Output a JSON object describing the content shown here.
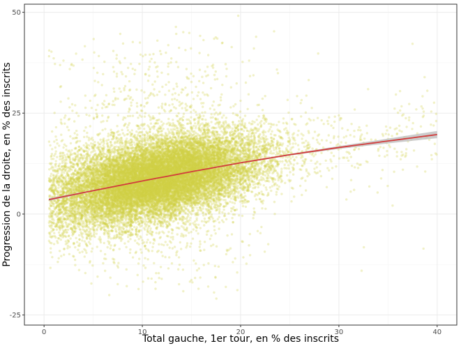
{
  "chart_data": {
    "type": "scatter",
    "title": "",
    "xlabel": "Total gauche, 1er tour, en % des inscrits",
    "ylabel": "Progression de la droite, en % des inscrits",
    "xlim": [
      -2,
      42
    ],
    "ylim": [
      -27.5,
      52
    ],
    "x_ticks": [
      0,
      10,
      20,
      30,
      40
    ],
    "y_ticks": [
      -25,
      0,
      25,
      50
    ],
    "x_tick_labels": [
      "0",
      "10",
      "20",
      "30",
      "40"
    ],
    "y_tick_labels": [
      "-25",
      "0",
      "25",
      "50"
    ],
    "grid": true,
    "legend": "none",
    "point_color": "#cfd146",
    "point_opacity": 0.3,
    "point_count_approx": 20000,
    "point_cloud": {
      "x_mean": 11.5,
      "x_sd": 5.2,
      "x_min": 0.5,
      "x_max": 40,
      "y_noise_sd": 4.8,
      "outlier_share": 0.06,
      "outlier_y_range": [
        -23,
        50
      ]
    },
    "smooth": {
      "method": "loess",
      "color": "#d23c3c",
      "band_color": "#bfbfbf",
      "x": [
        0.5,
        5,
        10,
        15,
        20,
        25,
        30,
        35,
        40
      ],
      "y": [
        3.6,
        5.8,
        8.2,
        10.5,
        12.7,
        14.7,
        16.5,
        18.1,
        19.7
      ],
      "ci_halfwidth": [
        0.35,
        0.15,
        0.1,
        0.1,
        0.15,
        0.2,
        0.35,
        0.6,
        0.9
      ]
    }
  }
}
